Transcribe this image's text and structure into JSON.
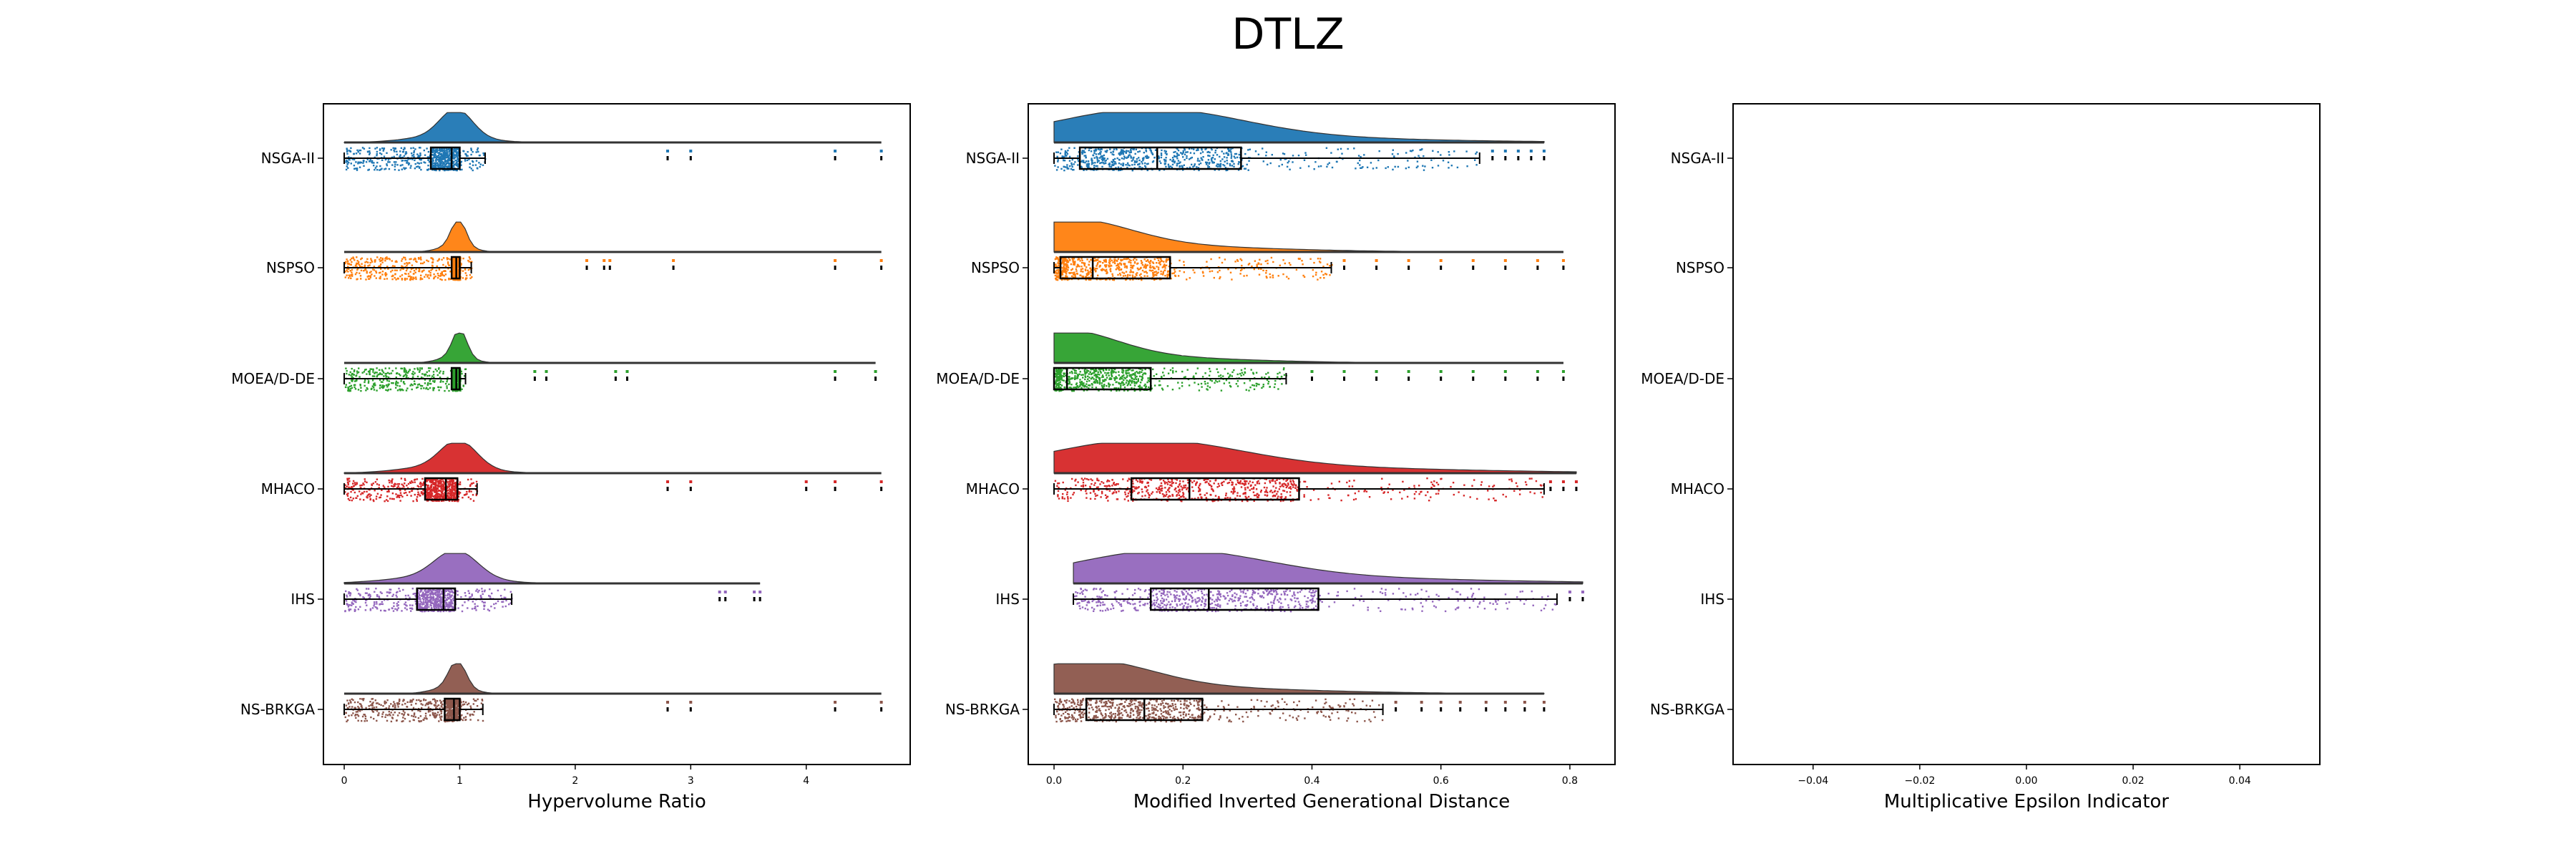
{
  "title": "DTLZ",
  "chart_data": [
    {
      "type": "raincloud",
      "xlabel": "Hypervolume Ratio",
      "xlim": [
        -0.18,
        4.9
      ],
      "xticks": [
        0,
        1,
        2,
        3,
        4
      ],
      "categories": [
        "NSGA-II",
        "NSPSO",
        "MOEA/D-DE",
        "MHACO",
        "IHS",
        "NS-BRKGA"
      ],
      "colors": [
        "#1f77b4",
        "#ff7f0e",
        "#2ca02c",
        "#d62728",
        "#9467bd",
        "#8c564b"
      ],
      "series": [
        {
          "name": "NSGA-II",
          "min": 0.0,
          "q1": 0.75,
          "median": 0.93,
          "q3": 1.0,
          "whisker_high": 1.22,
          "peak": 0.97,
          "outliers": [
            2.8,
            3.0,
            4.25,
            4.65
          ]
        },
        {
          "name": "NSPSO",
          "min": 0.0,
          "q1": 0.93,
          "median": 0.97,
          "q3": 1.0,
          "whisker_high": 1.1,
          "peak": 0.99,
          "outliers": [
            2.1,
            2.25,
            2.3,
            2.85,
            4.25,
            4.65
          ]
        },
        {
          "name": "MOEA/D-DE",
          "min": 0.0,
          "q1": 0.93,
          "median": 0.97,
          "q3": 1.0,
          "whisker_high": 1.05,
          "peak": 1.0,
          "outliers": [
            1.65,
            1.75,
            2.35,
            2.45,
            4.25,
            4.6
          ]
        },
        {
          "name": "MHACO",
          "min": 0.0,
          "q1": 0.7,
          "median": 0.88,
          "q3": 0.98,
          "whisker_high": 1.15,
          "peak": 0.99,
          "outliers": [
            2.8,
            3.0,
            4.0,
            4.25,
            4.65
          ]
        },
        {
          "name": "IHS",
          "min": 0.0,
          "q1": 0.63,
          "median": 0.86,
          "q3": 0.96,
          "whisker_high": 1.45,
          "peak": 0.97,
          "outliers": [
            3.25,
            3.3,
            3.55,
            3.6
          ]
        },
        {
          "name": "NS-BRKGA",
          "min": 0.0,
          "q1": 0.87,
          "median": 0.95,
          "q3": 1.0,
          "whisker_high": 1.2,
          "peak": 0.98,
          "outliers": [
            2.8,
            3.0,
            4.25,
            4.65
          ]
        }
      ]
    },
    {
      "type": "raincloud",
      "xlabel": "Modified Inverted Generational Distance",
      "xlim": [
        -0.04,
        0.87
      ],
      "xticks": [
        0.0,
        0.2,
        0.4,
        0.6,
        0.8
      ],
      "categories": [
        "NSGA-II",
        "NSPSO",
        "MOEA/D-DE",
        "MHACO",
        "IHS",
        "NS-BRKGA"
      ],
      "colors": [
        "#1f77b4",
        "#ff7f0e",
        "#2ca02c",
        "#d62728",
        "#9467bd",
        "#8c564b"
      ],
      "series": [
        {
          "name": "NSGA-II",
          "min": 0.0,
          "q1": 0.04,
          "median": 0.16,
          "q3": 0.29,
          "whisker_high": 0.66,
          "peak": 0.15,
          "outliers": [
            0.68,
            0.7,
            0.72,
            0.74,
            0.76
          ]
        },
        {
          "name": "NSPSO",
          "min": 0.0,
          "q1": 0.01,
          "median": 0.06,
          "q3": 0.18,
          "whisker_high": 0.43,
          "peak": 0.02,
          "outliers": [
            0.45,
            0.5,
            0.55,
            0.6,
            0.65,
            0.7,
            0.75,
            0.79
          ]
        },
        {
          "name": "MOEA/D-DE",
          "min": 0.0,
          "q1": 0.0,
          "median": 0.02,
          "q3": 0.15,
          "whisker_high": 0.36,
          "peak": 0.01,
          "outliers": [
            0.4,
            0.45,
            0.5,
            0.55,
            0.6,
            0.65,
            0.7,
            0.75,
            0.79
          ]
        },
        {
          "name": "MHACO",
          "min": 0.0,
          "q1": 0.12,
          "median": 0.21,
          "q3": 0.38,
          "whisker_high": 0.76,
          "peak": 0.14,
          "outliers": [
            0.77,
            0.79,
            0.81
          ]
        },
        {
          "name": "IHS",
          "min": 0.03,
          "q1": 0.15,
          "median": 0.24,
          "q3": 0.41,
          "whisker_high": 0.78,
          "peak": 0.18,
          "outliers": [
            0.8,
            0.82
          ]
        },
        {
          "name": "NS-BRKGA",
          "min": 0.0,
          "q1": 0.05,
          "median": 0.14,
          "q3": 0.23,
          "whisker_high": 0.51,
          "peak": 0.05,
          "outliers": [
            0.53,
            0.57,
            0.6,
            0.63,
            0.67,
            0.7,
            0.73,
            0.76
          ]
        }
      ]
    },
    {
      "type": "raincloud",
      "xlabel": "Multiplicative Epsilon Indicator",
      "xlim": [
        -0.055,
        0.055
      ],
      "xticks": [
        -0.04,
        -0.02,
        0.0,
        0.02,
        0.04
      ],
      "xtick_labels": [
        "−0.04",
        "−0.02",
        "0.00",
        "0.02",
        "0.04"
      ],
      "categories": [
        "NSGA-II",
        "NSPSO",
        "MOEA/D-DE",
        "MHACO",
        "IHS",
        "NS-BRKGA"
      ],
      "series": []
    }
  ]
}
